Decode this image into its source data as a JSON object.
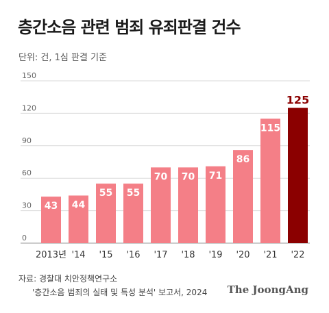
{
  "title": "층간소음 관련 범죄 유죄판결 건수",
  "unit_note": "단위: 건, 1심 판결 기준",
  "source_line1": "자료: 경찰대 치안정책연구소",
  "source_line2": "'층간소음 범죄의 실태 및 특성 분석' 보고서, 2024",
  "logo": "The JoongAng",
  "colors": {
    "bar": "#f47f87",
    "highlight": "#8b0000",
    "grid": "#d9d9d9"
  },
  "chart_data": {
    "type": "bar",
    "categories": [
      "2013년",
      "'14",
      "'15",
      "'16",
      "'17",
      "'18",
      "'19",
      "'20",
      "'21",
      "'22"
    ],
    "values": [
      43,
      44,
      55,
      55,
      70,
      70,
      71,
      86,
      115,
      125
    ],
    "highlight_index": 9,
    "yticks": [
      0,
      30,
      60,
      90,
      120,
      150
    ],
    "ylim": [
      0,
      150
    ],
    "grid": true
  }
}
